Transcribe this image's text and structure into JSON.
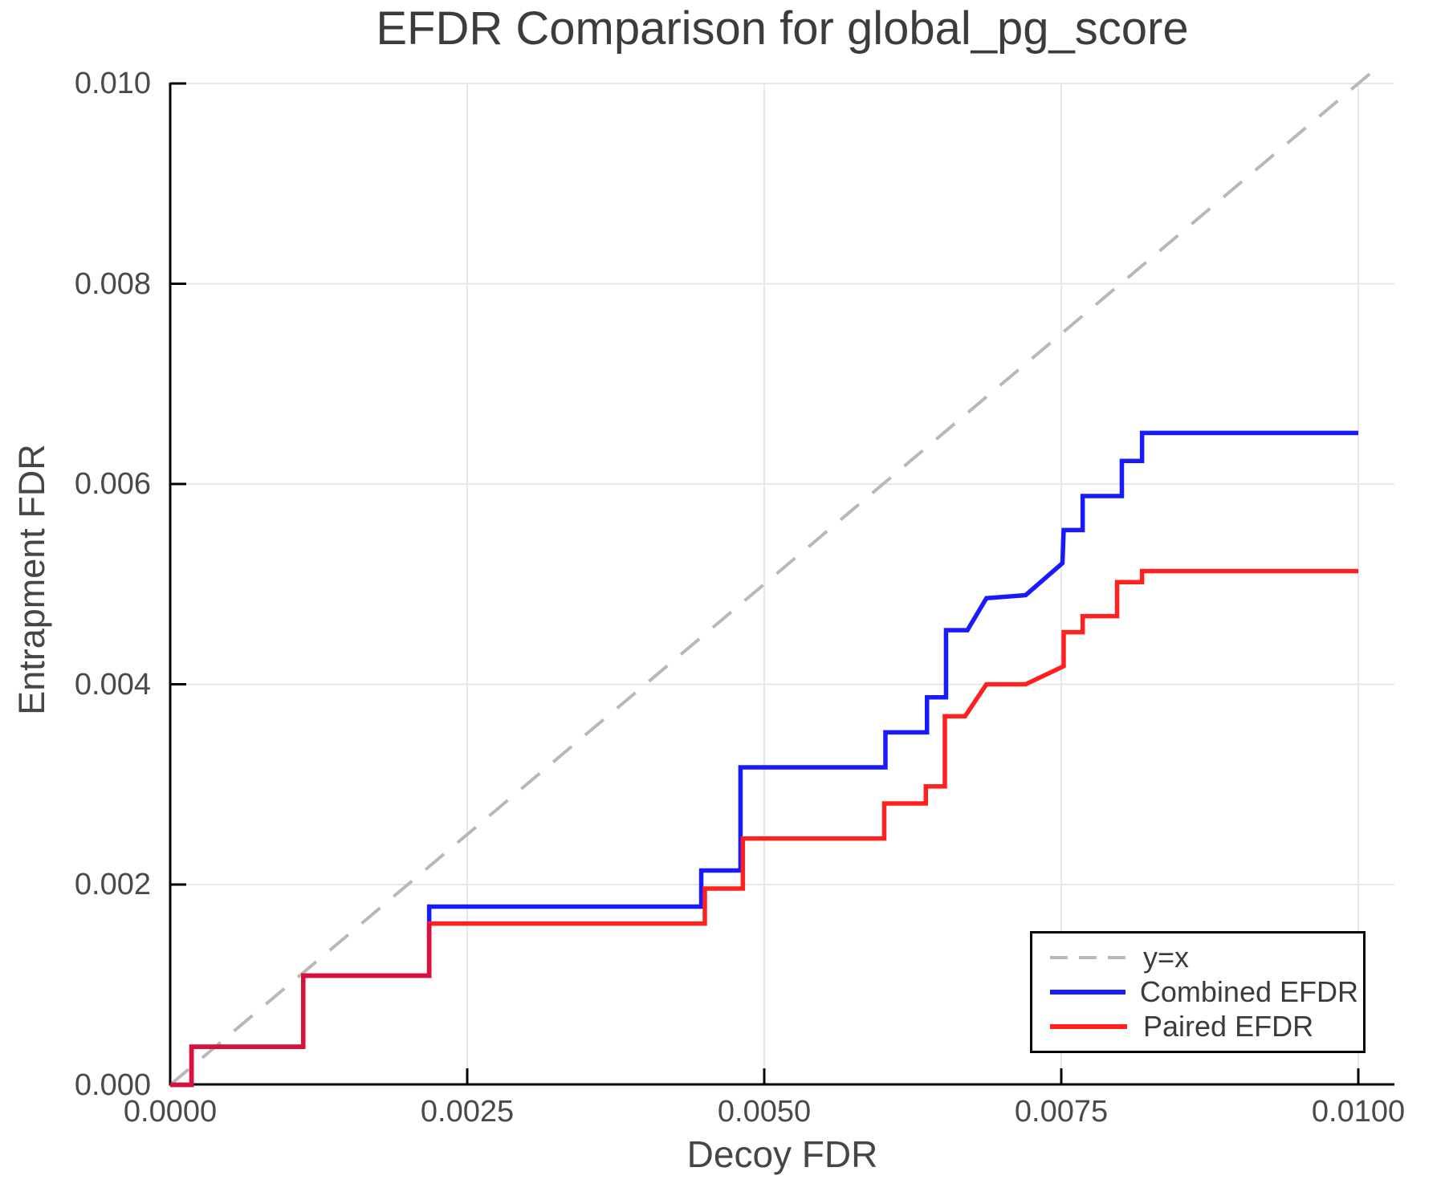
{
  "figure": {
    "title": "EFDR Comparison for global_pg_score",
    "background": "#ffffff"
  },
  "colors": {
    "combined": "#1a1aff",
    "paired": "#ff2020",
    "overlap": "#d8113c",
    "identity": "#b8b8b8",
    "grid": "#e7e7e7",
    "axis": "#000000",
    "tick_text": "#4a4a4a",
    "label_text": "#464646",
    "title_text": "#3c3c3c",
    "legend_border": "#000000",
    "legend_bg": "#ffffff"
  },
  "chart_data": {
    "type": "line",
    "title": "EFDR Comparison for global_pg_score",
    "xlabel": "Decoy FDR",
    "ylabel": "Entrapment FDR",
    "xlim": [
      0.0,
      0.01
    ],
    "ylim": [
      0.0,
      0.01
    ],
    "grid": true,
    "legend_position": "bottom-right",
    "xticks": {
      "values": [
        0.0,
        0.0025,
        0.005,
        0.0075,
        0.01
      ],
      "labels": [
        "0.0000",
        "0.0025",
        "0.0050",
        "0.0075",
        "0.0100"
      ]
    },
    "yticks": {
      "values": [
        0.0,
        0.002,
        0.004,
        0.006,
        0.008,
        0.01
      ],
      "labels": [
        "0.000",
        "0.002",
        "0.004",
        "0.006",
        "0.008",
        "0.010"
      ]
    },
    "series": [
      {
        "name": "y=x",
        "style": "dashed",
        "color_key": "identity",
        "points": [
          [
            0.0,
            0.0
          ],
          [
            0.01012,
            0.01012
          ]
        ]
      },
      {
        "name": "Combined EFDR",
        "style": "solid",
        "color_key": "combined",
        "points": [
          [
            0.0,
            0.0
          ],
          [
            0.00018,
            0.0
          ],
          [
            0.00018,
            0.00038
          ],
          [
            0.00112,
            0.00038
          ],
          [
            0.00112,
            0.00109
          ],
          [
            0.00218,
            0.00109
          ],
          [
            0.00218,
            0.00178
          ],
          [
            0.00447,
            0.00178
          ],
          [
            0.00447,
            0.00214
          ],
          [
            0.0048,
            0.00214
          ],
          [
            0.0048,
            0.00317
          ],
          [
            0.00602,
            0.00317
          ],
          [
            0.00602,
            0.00352
          ],
          [
            0.00637,
            0.00352
          ],
          [
            0.00637,
            0.00387
          ],
          [
            0.00653,
            0.00387
          ],
          [
            0.00653,
            0.00454
          ],
          [
            0.00671,
            0.00454
          ],
          [
            0.00687,
            0.00486
          ],
          [
            0.0072,
            0.00489
          ],
          [
            0.00751,
            0.00521
          ],
          [
            0.00752,
            0.00554
          ],
          [
            0.00768,
            0.00554
          ],
          [
            0.00768,
            0.00588
          ],
          [
            0.00801,
            0.00588
          ],
          [
            0.00801,
            0.00623
          ],
          [
            0.00818,
            0.00623
          ],
          [
            0.00818,
            0.00651
          ],
          [
            0.01,
            0.00651
          ]
        ]
      },
      {
        "name": "Paired EFDR",
        "style": "solid",
        "color_key": "paired",
        "points": [
          [
            0.0,
            0.0
          ],
          [
            0.00018,
            0.0
          ],
          [
            0.00018,
            0.00038
          ],
          [
            0.00112,
            0.00038
          ],
          [
            0.00112,
            0.00109
          ],
          [
            0.00218,
            0.00109
          ],
          [
            0.00218,
            0.00161
          ],
          [
            0.0045,
            0.00161
          ],
          [
            0.0045,
            0.00196
          ],
          [
            0.00482,
            0.00196
          ],
          [
            0.00482,
            0.00246
          ],
          [
            0.00601,
            0.00246
          ],
          [
            0.00601,
            0.00281
          ],
          [
            0.00636,
            0.00281
          ],
          [
            0.00636,
            0.00298
          ],
          [
            0.00652,
            0.00298
          ],
          [
            0.00652,
            0.00368
          ],
          [
            0.00669,
            0.00368
          ],
          [
            0.00687,
            0.004
          ],
          [
            0.0072,
            0.004
          ],
          [
            0.00752,
            0.00418
          ],
          [
            0.00752,
            0.00452
          ],
          [
            0.00768,
            0.00452
          ],
          [
            0.00768,
            0.00468
          ],
          [
            0.00797,
            0.00468
          ],
          [
            0.00797,
            0.00502
          ],
          [
            0.00818,
            0.00502
          ],
          [
            0.00818,
            0.00513
          ],
          [
            0.01,
            0.00513
          ]
        ]
      }
    ]
  }
}
